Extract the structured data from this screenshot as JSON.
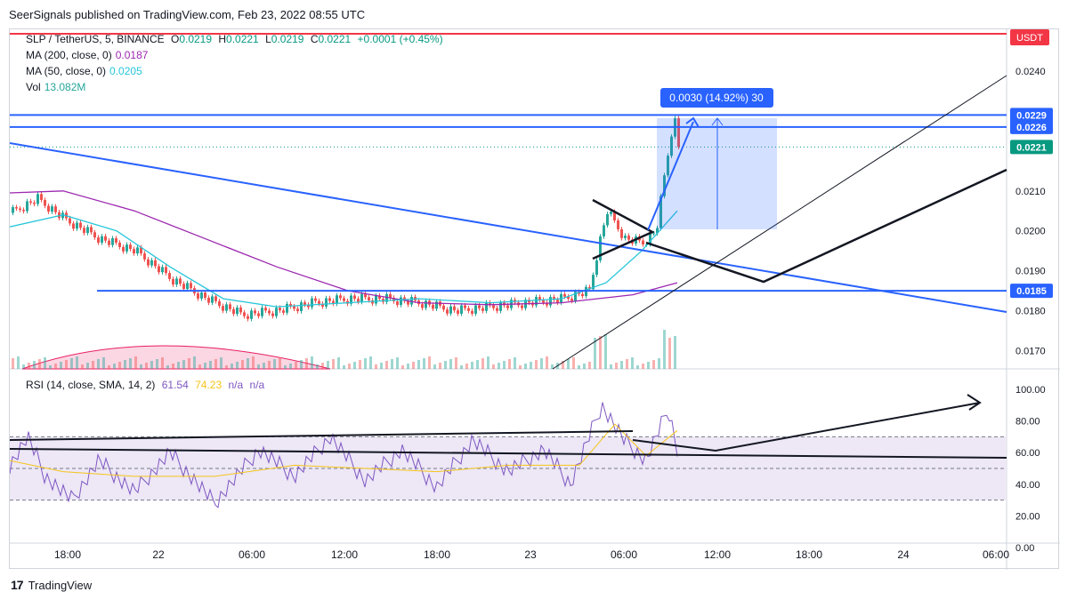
{
  "header": {
    "credit": "SeerSignals published on TradingView.com, Feb 23, 2022 08:55 UTC"
  },
  "footer": {
    "brand": "TradingView"
  },
  "legend": {
    "symbol": "SLP / TetherUS, 5, BINANCE",
    "o_label": "O",
    "o_value": "0.0219",
    "h_label": "H",
    "h_value": "0.0221",
    "l_label": "L",
    "l_value": "0.0219",
    "c_label": "C",
    "c_value": "0.0221",
    "change": "+0.0001 (+0.45%)",
    "ma200_label": "MA (200, close, 0)",
    "ma200_value": "0.0187",
    "ma50_label": "MA (50, close, 0)",
    "ma50_value": "0.0205",
    "vol_label": "Vol",
    "vol_value": "13.082M"
  },
  "rsi_legend": {
    "label": "RSI (14, close, SMA, 14, 2)",
    "rsi_value": "61.54",
    "sma_value": "74.23",
    "na1": "n/a",
    "na2": "n/a"
  },
  "colors": {
    "up": "#26a69a",
    "down": "#ef5350",
    "ma200": "#9c27b0",
    "ma50": "#26c6da",
    "rsi": "#7e57c2",
    "rsi_sma": "#f5c518",
    "blue_line": "#2962ff",
    "red_line": "#f23645",
    "label_blue": "#2962ff",
    "label_green": "#089981",
    "rsi_band": "#ede7f6"
  },
  "chart_data": {
    "type": "candlestick",
    "symbol": "SLP / TetherUS",
    "interval": "5",
    "exchange": "BINANCE",
    "currency": "USDT",
    "x_ticks": [
      "18:00",
      "22",
      "06:00",
      "12:00",
      "18:00",
      "23",
      "06:00",
      "12:00",
      "18:00",
      "24",
      "06:00"
    ],
    "y_ticks": [
      "0.0240",
      "0.0210",
      "0.0200",
      "0.0190",
      "0.0180",
      "0.0170"
    ],
    "y_range": [
      0.0165,
      0.025
    ],
    "price_labels": [
      {
        "value": "0.0229",
        "kind": "horizontal-line"
      },
      {
        "value": "0.0226",
        "kind": "horizontal-line"
      },
      {
        "value": "0.0221",
        "kind": "last-price"
      },
      {
        "value": "0.0185",
        "kind": "horizontal-line"
      }
    ],
    "red_level_label": "USDT",
    "measure_label": "0.0030 (14.92%) 30",
    "close_path": [
      {
        "t": 0,
        "v": 0.02045
      },
      {
        "t": 30,
        "v": 0.0208
      },
      {
        "t": 60,
        "v": 0.0203
      },
      {
        "t": 100,
        "v": 0.0198
      },
      {
        "t": 140,
        "v": 0.0195
      },
      {
        "t": 180,
        "v": 0.0188
      },
      {
        "t": 220,
        "v": 0.0183
      },
      {
        "t": 260,
        "v": 0.0179
      },
      {
        "t": 300,
        "v": 0.018
      },
      {
        "t": 340,
        "v": 0.0182
      },
      {
        "t": 380,
        "v": 0.0183
      },
      {
        "t": 420,
        "v": 0.0183
      },
      {
        "t": 460,
        "v": 0.0182
      },
      {
        "t": 500,
        "v": 0.018
      },
      {
        "t": 540,
        "v": 0.0181
      },
      {
        "t": 580,
        "v": 0.0182
      },
      {
        "t": 620,
        "v": 0.0183
      },
      {
        "t": 650,
        "v": 0.0185
      },
      {
        "t": 660,
        "v": 0.0196
      },
      {
        "t": 670,
        "v": 0.0205
      },
      {
        "t": 690,
        "v": 0.0198
      },
      {
        "t": 710,
        "v": 0.0197
      },
      {
        "t": 725,
        "v": 0.02
      },
      {
        "t": 735,
        "v": 0.0215
      },
      {
        "t": 745,
        "v": 0.0229
      },
      {
        "t": 750,
        "v": 0.0221
      }
    ],
    "ma200_path": [
      {
        "t": 0,
        "v": 0.02095
      },
      {
        "t": 60,
        "v": 0.021
      },
      {
        "t": 140,
        "v": 0.0205
      },
      {
        "t": 220,
        "v": 0.0198
      },
      {
        "t": 300,
        "v": 0.0191
      },
      {
        "t": 380,
        "v": 0.0185
      },
      {
        "t": 460,
        "v": 0.0182
      },
      {
        "t": 540,
        "v": 0.01815
      },
      {
        "t": 620,
        "v": 0.0182
      },
      {
        "t": 700,
        "v": 0.0184
      },
      {
        "t": 750,
        "v": 0.0187
      }
    ],
    "ma50_path": [
      {
        "t": 0,
        "v": 0.0201
      },
      {
        "t": 60,
        "v": 0.0204
      },
      {
        "t": 120,
        "v": 0.02
      },
      {
        "t": 180,
        "v": 0.0191
      },
      {
        "t": 240,
        "v": 0.0183
      },
      {
        "t": 300,
        "v": 0.0181
      },
      {
        "t": 380,
        "v": 0.0182
      },
      {
        "t": 460,
        "v": 0.0183
      },
      {
        "t": 540,
        "v": 0.0182
      },
      {
        "t": 620,
        "v": 0.0183
      },
      {
        "t": 670,
        "v": 0.0187
      },
      {
        "t": 710,
        "v": 0.0195
      },
      {
        "t": 750,
        "v": 0.0205
      }
    ],
    "rsi": {
      "y_ticks": [
        "100.00",
        "80.00",
        "60.00",
        "40.00",
        "20.00",
        "0.00"
      ],
      "range": [
        0,
        100
      ],
      "upper_band": 70,
      "lower_band": 30,
      "rsi_path": [
        {
          "t": 0,
          "v": 52
        },
        {
          "t": 20,
          "v": 70
        },
        {
          "t": 40,
          "v": 45
        },
        {
          "t": 70,
          "v": 30
        },
        {
          "t": 100,
          "v": 55
        },
        {
          "t": 140,
          "v": 35
        },
        {
          "t": 180,
          "v": 60
        },
        {
          "t": 230,
          "v": 28
        },
        {
          "t": 280,
          "v": 62
        },
        {
          "t": 320,
          "v": 45
        },
        {
          "t": 360,
          "v": 70
        },
        {
          "t": 400,
          "v": 42
        },
        {
          "t": 440,
          "v": 62
        },
        {
          "t": 480,
          "v": 38
        },
        {
          "t": 520,
          "v": 68
        },
        {
          "t": 560,
          "v": 48
        },
        {
          "t": 600,
          "v": 62
        },
        {
          "t": 630,
          "v": 40
        },
        {
          "t": 665,
          "v": 90
        },
        {
          "t": 690,
          "v": 68
        },
        {
          "t": 715,
          "v": 55
        },
        {
          "t": 740,
          "v": 88
        },
        {
          "t": 750,
          "v": 62
        }
      ],
      "sma_path": [
        {
          "t": 0,
          "v": 55
        },
        {
          "t": 60,
          "v": 48
        },
        {
          "t": 140,
          "v": 45
        },
        {
          "t": 230,
          "v": 45
        },
        {
          "t": 320,
          "v": 52
        },
        {
          "t": 400,
          "v": 50
        },
        {
          "t": 480,
          "v": 48
        },
        {
          "t": 560,
          "v": 52
        },
        {
          "t": 640,
          "v": 52
        },
        {
          "t": 680,
          "v": 78
        },
        {
          "t": 715,
          "v": 58
        },
        {
          "t": 750,
          "v": 74
        }
      ]
    }
  }
}
